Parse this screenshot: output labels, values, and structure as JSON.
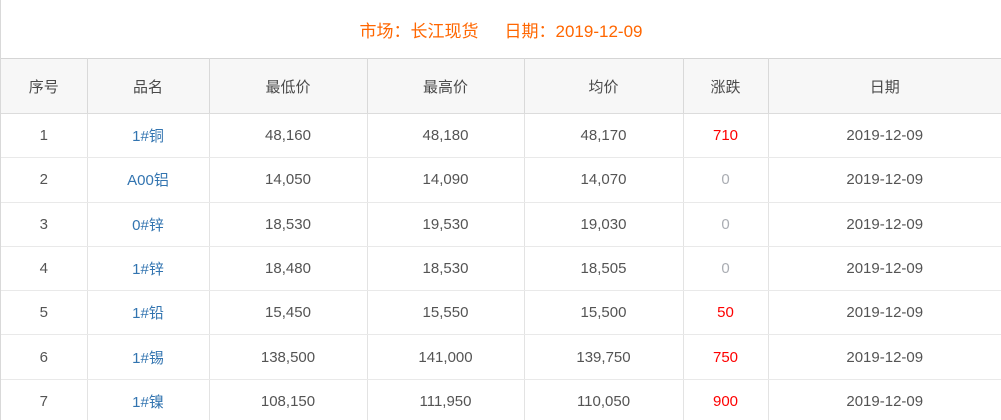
{
  "title": {
    "market": "市场：长江现货",
    "date": "日期：2019-12-09"
  },
  "colors": {
    "title_orange": "#ff6600",
    "product_link_blue": "#3274b0",
    "change_up_red": "#fe0000",
    "change_flat_gray": "#aaadb3",
    "header_background": "#f7f7f7"
  },
  "table": {
    "columns": [
      "序号",
      "品名",
      "最低价",
      "最高价",
      "均价",
      "涨跌",
      "日期"
    ],
    "rows": [
      {
        "no": "1",
        "name": "1#铜",
        "low": "48,160",
        "high": "48,180",
        "avg": "48,170",
        "change": "710",
        "change_dir": "up",
        "date": "2019-12-09"
      },
      {
        "no": "2",
        "name": "A00铝",
        "low": "14,050",
        "high": "14,090",
        "avg": "14,070",
        "change": "0",
        "change_dir": "flat",
        "date": "2019-12-09"
      },
      {
        "no": "3",
        "name": "0#锌",
        "low": "18,530",
        "high": "19,530",
        "avg": "19,030",
        "change": "0",
        "change_dir": "flat",
        "date": "2019-12-09"
      },
      {
        "no": "4",
        "name": "1#锌",
        "low": "18,480",
        "high": "18,530",
        "avg": "18,505",
        "change": "0",
        "change_dir": "flat",
        "date": "2019-12-09"
      },
      {
        "no": "5",
        "name": "1#铅",
        "low": "15,450",
        "high": "15,550",
        "avg": "15,500",
        "change": "50",
        "change_dir": "up",
        "date": "2019-12-09"
      },
      {
        "no": "6",
        "name": "1#锡",
        "low": "138,500",
        "high": "141,000",
        "avg": "139,750",
        "change": "750",
        "change_dir": "up",
        "date": "2019-12-09"
      },
      {
        "no": "7",
        "name": "1#镍",
        "low": "108,150",
        "high": "111,950",
        "avg": "110,050",
        "change": "900",
        "change_dir": "up",
        "date": "2019-12-09"
      }
    ]
  }
}
